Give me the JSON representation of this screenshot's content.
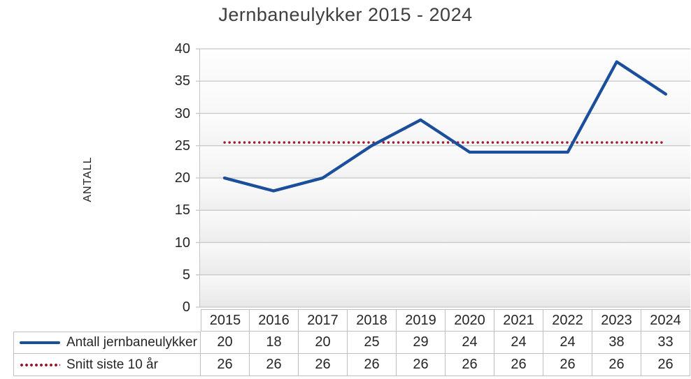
{
  "title": "Jernbaneulykker 2015 - 2024",
  "y_axis": {
    "label": "ANTALL",
    "ticks": [
      40,
      35,
      30,
      25,
      20,
      15,
      10,
      5,
      0
    ]
  },
  "chart_data": {
    "type": "line",
    "title": "Jernbaneulykker 2015 - 2024",
    "xlabel": "",
    "ylabel": "ANTALL",
    "ylim": [
      0,
      40
    ],
    "ytick_step": 5,
    "grid": "horizontal-only",
    "legend_position": "table-left-with-keys",
    "categories": [
      "2015",
      "2016",
      "2017",
      "2018",
      "2019",
      "2020",
      "2021",
      "2022",
      "2023",
      "2024"
    ],
    "series": [
      {
        "name": "Antall jernbaneulykker",
        "values": [
          20,
          18,
          20,
          25,
          29,
          24,
          24,
          24,
          38,
          33
        ],
        "color": "#1b4e9b",
        "style": "solid"
      },
      {
        "name": "Snitt siste 10 år",
        "values": [
          26,
          26,
          26,
          26,
          26,
          26,
          26,
          26,
          26,
          26
        ],
        "plotted_line_value": 25.5,
        "color": "#9b1b2e",
        "style": "dotted"
      }
    ]
  },
  "colors": {
    "accidents_line": "#1b4e9b",
    "average_line": "#9b1b2e",
    "gridline": "#c6c6c6",
    "table_border": "#bfbfbf",
    "title_text": "#3f3f3f",
    "body_text": "#262626"
  }
}
